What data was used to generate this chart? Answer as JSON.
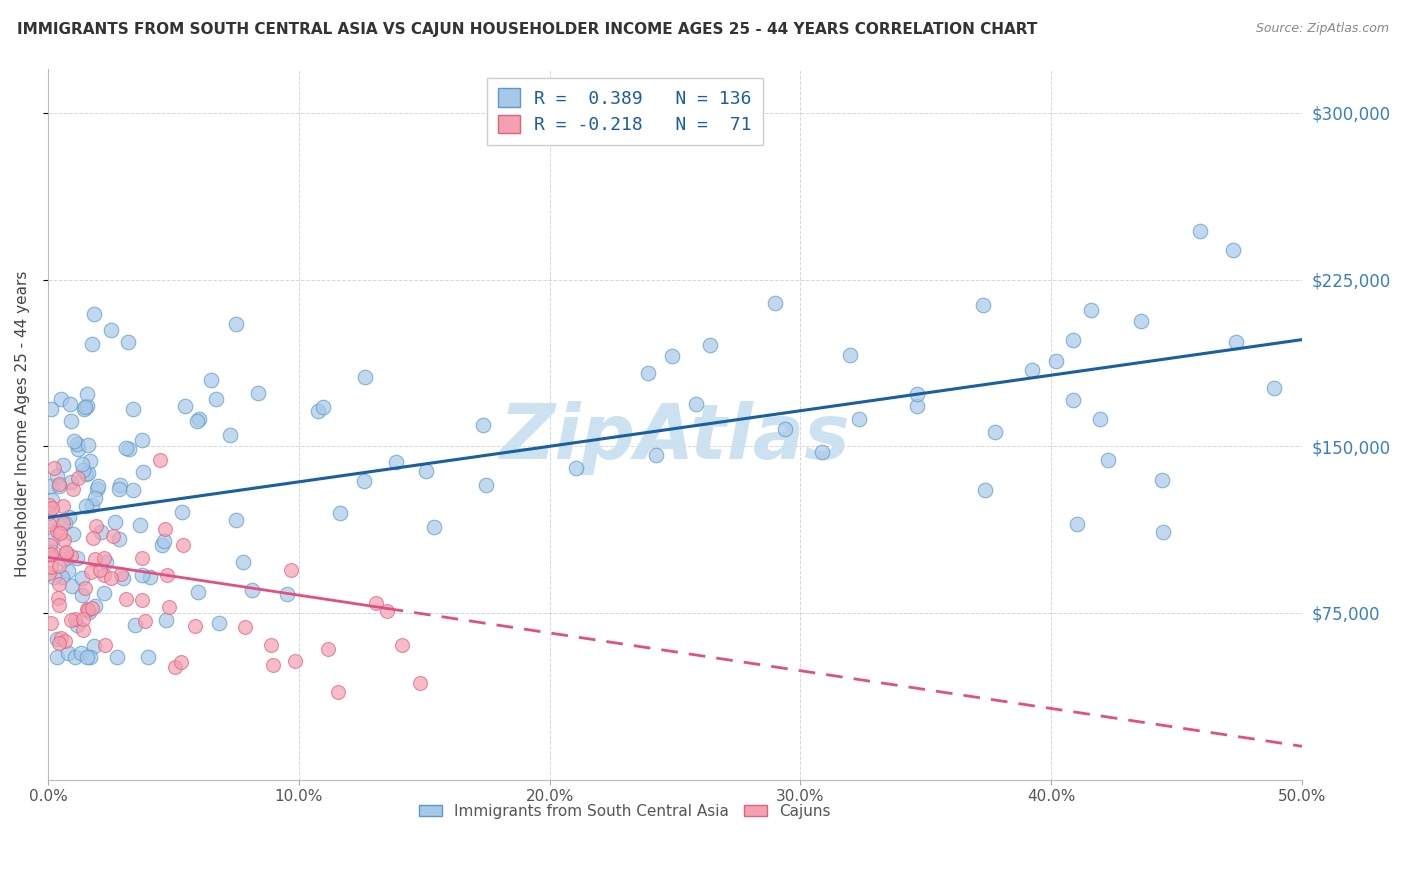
{
  "title": "IMMIGRANTS FROM SOUTH CENTRAL ASIA VS CAJUN HOUSEHOLDER INCOME AGES 25 - 44 YEARS CORRELATION CHART",
  "source": "Source: ZipAtlas.com",
  "ylabel": "Householder Income Ages 25 - 44 years",
  "legend1_label": "Immigrants from South Central Asia",
  "legend2_label": "Cajuns",
  "R1": "0.389",
  "N1": "136",
  "R2": "-0.218",
  "N2": "71",
  "blue_face_color": "#a8c8e8",
  "blue_edge_color": "#5a9ac8",
  "pink_face_color": "#f4a0b0",
  "pink_edge_color": "#e06080",
  "blue_line_color": "#1a5fa0",
  "pink_line_color": "#e05080",
  "watermark_color": "#c8dff0",
  "ytick_color": "#3a7fc0",
  "title_color": "#333333",
  "source_color": "#888888",
  "grid_color": "#cccccc",
  "xlim": [
    0,
    50
  ],
  "ylim": [
    0,
    320000
  ],
  "yticks": [
    75000,
    150000,
    225000,
    300000
  ],
  "xticks": [
    0,
    10,
    20,
    30,
    40,
    50
  ],
  "xtick_labels": [
    "0.0%",
    "10.0%",
    "20.0%",
    "30.0%",
    "40.0%",
    "50.0%"
  ]
}
